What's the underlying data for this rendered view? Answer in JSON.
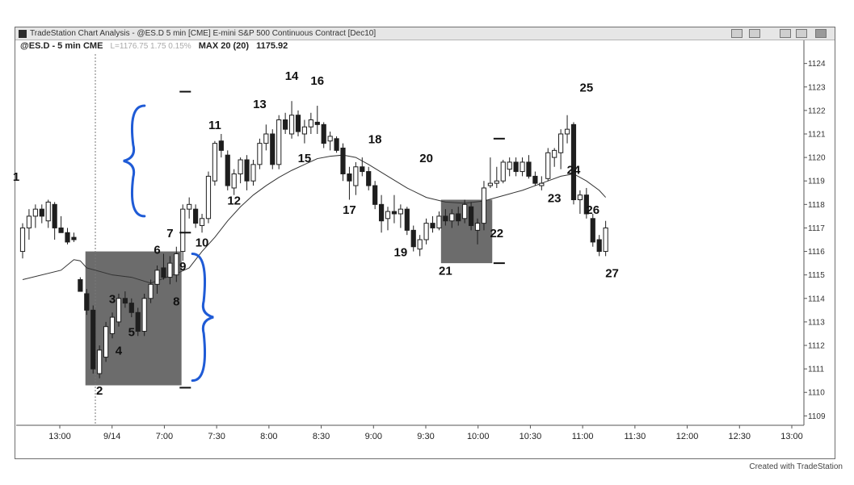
{
  "window": {
    "title": "TradeStation Chart Analysis - @ES.D 5 min [CME] E-mini S&P 500 Continuous Contract [Dec10]",
    "symbol_label": "@ES.D - 5 min CME",
    "last_label": "L=1176.75 1.75 0.15%",
    "ma_label": "MAX 20 (20)",
    "ma_value": "1175.92",
    "footer": "Created with TradeStation"
  },
  "colors": {
    "bull_body": "#ffffff",
    "bear_body": "#1e1e1e",
    "ma_line": "#333333",
    "shaded_box": "#5c5c5c",
    "brace": "#1f5bd6"
  },
  "chart_data": {
    "type": "candlestick",
    "title": "",
    "ylim": [
      1108.6,
      1124.4
    ],
    "y_ticks": [
      1109,
      1110,
      1111,
      1112,
      1113,
      1114,
      1115,
      1116,
      1117,
      1118,
      1119,
      1120,
      1121,
      1122,
      1123,
      1124
    ],
    "x_ticks": [
      "13:00",
      "9/14",
      "7:00",
      "7:30",
      "8:00",
      "8:30",
      "9:00",
      "9:30",
      "10:00",
      "10:30",
      "11:00",
      "11:30",
      "12:00",
      "12:30",
      "13:00"
    ],
    "bars": [
      {
        "o": 1116.0,
        "h": 1117.2,
        "l": 1115.7,
        "c": 1117.0
      },
      {
        "o": 1117.0,
        "h": 1117.8,
        "l": 1116.5,
        "c": 1117.5
      },
      {
        "o": 1117.5,
        "h": 1118.0,
        "l": 1117.0,
        "c": 1117.8
      },
      {
        "o": 1117.8,
        "h": 1118.0,
        "l": 1117.2,
        "c": 1117.5
      },
      {
        "o": 1117.3,
        "h": 1118.2,
        "l": 1117.0,
        "c": 1118.1
      },
      {
        "o": 1118.0,
        "h": 1118.1,
        "l": 1116.5,
        "c": 1117.0
      },
      {
        "o": 1117.0,
        "h": 1117.5,
        "l": 1116.8,
        "c": 1116.8
      },
      {
        "o": 1116.8,
        "h": 1117.0,
        "l": 1116.3,
        "c": 1116.4
      },
      {
        "o": 1116.6,
        "h": 1116.8,
        "l": 1116.4,
        "c": 1116.5
      },
      {
        "o": 1114.8,
        "h": 1114.9,
        "l": 1114.3,
        "c": 1114.3
      },
      {
        "o": 1114.2,
        "h": 1114.4,
        "l": 1113.3,
        "c": 1113.5
      },
      {
        "o": 1113.5,
        "h": 1113.7,
        "l": 1110.8,
        "c": 1111.0
      },
      {
        "o": 1110.8,
        "h": 1112.0,
        "l": 1110.6,
        "c": 1111.8
      },
      {
        "o": 1111.5,
        "h": 1113.0,
        "l": 1111.3,
        "c": 1112.8
      },
      {
        "o": 1112.5,
        "h": 1113.4,
        "l": 1112.3,
        "c": 1113.2
      },
      {
        "o": 1113.0,
        "h": 1114.2,
        "l": 1112.8,
        "c": 1114.0
      },
      {
        "o": 1114.0,
        "h": 1114.3,
        "l": 1113.6,
        "c": 1113.8
      },
      {
        "o": 1113.8,
        "h": 1114.0,
        "l": 1113.2,
        "c": 1113.4
      },
      {
        "o": 1113.4,
        "h": 1113.6,
        "l": 1112.4,
        "c": 1112.6
      },
      {
        "o": 1112.6,
        "h": 1114.2,
        "l": 1112.4,
        "c": 1114.0
      },
      {
        "o": 1114.0,
        "h": 1114.8,
        "l": 1113.8,
        "c": 1114.6
      },
      {
        "o": 1114.6,
        "h": 1115.4,
        "l": 1114.2,
        "c": 1115.2
      },
      {
        "o": 1115.3,
        "h": 1115.9,
        "l": 1114.8,
        "c": 1114.9
      },
      {
        "o": 1114.9,
        "h": 1115.8,
        "l": 1114.6,
        "c": 1115.5
      },
      {
        "o": 1115.0,
        "h": 1116.2,
        "l": 1114.7,
        "c": 1115.9
      },
      {
        "o": 1116.0,
        "h": 1118.0,
        "l": 1115.6,
        "c": 1117.8
      },
      {
        "o": 1117.8,
        "h": 1118.3,
        "l": 1117.4,
        "c": 1118.0
      },
      {
        "o": 1117.8,
        "h": 1118.0,
        "l": 1117.0,
        "c": 1117.2
      },
      {
        "o": 1117.1,
        "h": 1117.6,
        "l": 1116.8,
        "c": 1117.4
      },
      {
        "o": 1117.4,
        "h": 1119.4,
        "l": 1117.2,
        "c": 1119.2
      },
      {
        "o": 1119.0,
        "h": 1120.7,
        "l": 1118.8,
        "c": 1120.6
      },
      {
        "o": 1120.7,
        "h": 1121.0,
        "l": 1120.0,
        "c": 1120.3
      },
      {
        "o": 1120.1,
        "h": 1120.3,
        "l": 1118.6,
        "c": 1118.8
      },
      {
        "o": 1118.7,
        "h": 1119.5,
        "l": 1118.4,
        "c": 1119.3
      },
      {
        "o": 1119.3,
        "h": 1120.0,
        "l": 1118.9,
        "c": 1119.9
      },
      {
        "o": 1119.9,
        "h": 1120.1,
        "l": 1118.6,
        "c": 1119.0
      },
      {
        "o": 1119.0,
        "h": 1119.9,
        "l": 1118.8,
        "c": 1119.7
      },
      {
        "o": 1119.7,
        "h": 1120.8,
        "l": 1119.5,
        "c": 1120.6
      },
      {
        "o": 1120.6,
        "h": 1121.4,
        "l": 1120.3,
        "c": 1121.0
      },
      {
        "o": 1121.0,
        "h": 1121.2,
        "l": 1119.5,
        "c": 1119.7
      },
      {
        "o": 1119.7,
        "h": 1121.8,
        "l": 1119.5,
        "c": 1121.6
      },
      {
        "o": 1121.6,
        "h": 1121.9,
        "l": 1121.0,
        "c": 1121.2
      },
      {
        "o": 1121.0,
        "h": 1122.4,
        "l": 1120.8,
        "c": 1121.8
      },
      {
        "o": 1121.8,
        "h": 1122.0,
        "l": 1120.9,
        "c": 1121.1
      },
      {
        "o": 1121.0,
        "h": 1121.6,
        "l": 1120.6,
        "c": 1121.3
      },
      {
        "o": 1121.3,
        "h": 1121.9,
        "l": 1121.0,
        "c": 1121.6
      },
      {
        "o": 1121.5,
        "h": 1122.2,
        "l": 1121.0,
        "c": 1121.4
      },
      {
        "o": 1121.4,
        "h": 1121.5,
        "l": 1120.4,
        "c": 1120.6
      },
      {
        "o": 1120.7,
        "h": 1121.1,
        "l": 1120.3,
        "c": 1120.9
      },
      {
        "o": 1120.8,
        "h": 1120.9,
        "l": 1120.2,
        "c": 1120.3
      },
      {
        "o": 1120.4,
        "h": 1120.6,
        "l": 1119.0,
        "c": 1119.3
      },
      {
        "o": 1119.3,
        "h": 1119.6,
        "l": 1118.2,
        "c": 1119.0
      },
      {
        "o": 1118.8,
        "h": 1119.8,
        "l": 1118.4,
        "c": 1119.6
      },
      {
        "o": 1119.6,
        "h": 1120.0,
        "l": 1119.2,
        "c": 1119.4
      },
      {
        "o": 1119.4,
        "h": 1119.6,
        "l": 1118.6,
        "c": 1118.8
      },
      {
        "o": 1118.8,
        "h": 1119.0,
        "l": 1117.8,
        "c": 1118.0
      },
      {
        "o": 1118.0,
        "h": 1118.4,
        "l": 1116.8,
        "c": 1117.3
      },
      {
        "o": 1117.4,
        "h": 1117.9,
        "l": 1116.9,
        "c": 1117.7
      },
      {
        "o": 1117.7,
        "h": 1118.4,
        "l": 1117.2,
        "c": 1117.6
      },
      {
        "o": 1117.6,
        "h": 1118.0,
        "l": 1117.0,
        "c": 1117.8
      },
      {
        "o": 1117.8,
        "h": 1117.9,
        "l": 1116.7,
        "c": 1116.9
      },
      {
        "o": 1116.9,
        "h": 1117.1,
        "l": 1116.0,
        "c": 1116.2
      },
      {
        "o": 1116.1,
        "h": 1116.7,
        "l": 1115.8,
        "c": 1116.5
      },
      {
        "o": 1116.5,
        "h": 1117.4,
        "l": 1116.3,
        "c": 1117.2
      },
      {
        "o": 1117.2,
        "h": 1117.5,
        "l": 1116.8,
        "c": 1117.0
      },
      {
        "o": 1117.0,
        "h": 1117.7,
        "l": 1116.9,
        "c": 1117.5
      },
      {
        "o": 1117.5,
        "h": 1117.8,
        "l": 1117.1,
        "c": 1117.3
      },
      {
        "o": 1117.3,
        "h": 1117.8,
        "l": 1117.0,
        "c": 1117.6
      },
      {
        "o": 1117.6,
        "h": 1117.9,
        "l": 1117.1,
        "c": 1117.3
      },
      {
        "o": 1117.4,
        "h": 1118.2,
        "l": 1117.2,
        "c": 1118.0
      },
      {
        "o": 1117.9,
        "h": 1118.1,
        "l": 1116.9,
        "c": 1117.1
      },
      {
        "o": 1116.9,
        "h": 1117.4,
        "l": 1116.3,
        "c": 1117.2
      },
      {
        "o": 1117.2,
        "h": 1119.0,
        "l": 1116.9,
        "c": 1118.7
      },
      {
        "o": 1118.8,
        "h": 1120.0,
        "l": 1118.7,
        "c": 1118.9
      },
      {
        "o": 1118.9,
        "h": 1119.6,
        "l": 1118.7,
        "c": 1119.0
      },
      {
        "o": 1119.0,
        "h": 1119.9,
        "l": 1118.9,
        "c": 1119.8
      },
      {
        "o": 1119.5,
        "h": 1120.0,
        "l": 1119.2,
        "c": 1119.8
      },
      {
        "o": 1119.8,
        "h": 1120.0,
        "l": 1119.2,
        "c": 1119.4
      },
      {
        "o": 1119.4,
        "h": 1120.0,
        "l": 1119.2,
        "c": 1119.8
      },
      {
        "o": 1119.8,
        "h": 1120.1,
        "l": 1119.1,
        "c": 1119.2
      },
      {
        "o": 1119.2,
        "h": 1119.4,
        "l": 1118.8,
        "c": 1118.9
      },
      {
        "o": 1118.8,
        "h": 1119.2,
        "l": 1118.6,
        "c": 1118.9
      },
      {
        "o": 1119.1,
        "h": 1120.4,
        "l": 1119.0,
        "c": 1120.2
      },
      {
        "o": 1120.0,
        "h": 1120.4,
        "l": 1119.6,
        "c": 1120.3
      },
      {
        "o": 1120.2,
        "h": 1121.2,
        "l": 1119.5,
        "c": 1121.0
      },
      {
        "o": 1121.0,
        "h": 1121.8,
        "l": 1120.6,
        "c": 1121.2
      },
      {
        "o": 1121.4,
        "h": 1121.5,
        "l": 1118.0,
        "c": 1118.2
      },
      {
        "o": 1118.2,
        "h": 1118.6,
        "l": 1117.6,
        "c": 1118.4
      },
      {
        "o": 1118.4,
        "h": 1118.7,
        "l": 1117.4,
        "c": 1117.6
      },
      {
        "o": 1117.4,
        "h": 1117.6,
        "l": 1116.2,
        "c": 1116.4
      },
      {
        "o": 1116.5,
        "h": 1116.7,
        "l": 1115.8,
        "c": 1116.0
      },
      {
        "o": 1116.0,
        "h": 1117.3,
        "l": 1115.8,
        "c": 1117.0
      }
    ],
    "moving_average": [
      [
        1114.8,
        0
      ],
      [
        1115.2,
        6
      ],
      [
        1115.65,
        8
      ],
      [
        1115.6,
        9
      ],
      [
        1115.3,
        10
      ],
      [
        1115.0,
        14
      ],
      [
        1114.9,
        17
      ],
      [
        1114.65,
        20
      ],
      [
        1114.85,
        22
      ],
      [
        1115.05,
        24
      ],
      [
        1115.3,
        26
      ],
      [
        1116.0,
        28
      ],
      [
        1116.6,
        30
      ],
      [
        1117.3,
        32
      ],
      [
        1117.9,
        34
      ],
      [
        1118.4,
        36
      ],
      [
        1118.8,
        38
      ],
      [
        1119.15,
        40
      ],
      [
        1119.45,
        42
      ],
      [
        1119.7,
        44
      ],
      [
        1119.95,
        46
      ],
      [
        1120.05,
        48
      ],
      [
        1120.1,
        50
      ],
      [
        1120.0,
        52
      ],
      [
        1119.7,
        54
      ],
      [
        1119.2,
        57
      ],
      [
        1118.7,
        60
      ],
      [
        1118.3,
        63
      ],
      [
        1118.1,
        66
      ],
      [
        1118.05,
        69
      ],
      [
        1118.15,
        72
      ],
      [
        1118.3,
        74
      ],
      [
        1118.45,
        76
      ],
      [
        1118.6,
        78
      ],
      [
        1118.8,
        80
      ],
      [
        1119.0,
        82
      ],
      [
        1119.2,
        84
      ],
      [
        1119.3,
        86
      ],
      [
        1119.0,
        88
      ],
      [
        1118.6,
        90
      ],
      [
        1118.3,
        91
      ]
    ],
    "annotations": [
      {
        "text": "1",
        "bar": -1,
        "price": 1119.0
      },
      {
        "text": "2",
        "bar": 12,
        "price": 1109.9
      },
      {
        "text": "3",
        "bar": 14,
        "price": 1113.8
      },
      {
        "text": "4",
        "bar": 15,
        "price": 1111.6
      },
      {
        "text": "5",
        "bar": 17,
        "price": 1112.4
      },
      {
        "text": "6",
        "bar": 21,
        "price": 1115.9
      },
      {
        "text": "7",
        "bar": 23,
        "price": 1116.6
      },
      {
        "text": "8",
        "bar": 24,
        "price": 1113.7
      },
      {
        "text": "9",
        "bar": 25,
        "price": 1115.2
      },
      {
        "text": "10",
        "bar": 28,
        "price": 1116.2
      },
      {
        "text": "11",
        "bar": 30,
        "price": 1121.2
      },
      {
        "text": "12",
        "bar": 33,
        "price": 1118.0
      },
      {
        "text": "13",
        "bar": 37,
        "price": 1122.1
      },
      {
        "text": "14",
        "bar": 42,
        "price": 1123.3
      },
      {
        "text": "15",
        "bar": 44,
        "price": 1119.8
      },
      {
        "text": "16",
        "bar": 46,
        "price": 1123.1
      },
      {
        "text": "17",
        "bar": 51,
        "price": 1117.6
      },
      {
        "text": "18",
        "bar": 55,
        "price": 1120.6
      },
      {
        "text": "19",
        "bar": 59,
        "price": 1115.8
      },
      {
        "text": "20",
        "bar": 63,
        "price": 1119.8
      },
      {
        "text": "21",
        "bar": 66,
        "price": 1115.0
      },
      {
        "text": "22",
        "bar": 74,
        "price": 1116.6
      },
      {
        "text": "23",
        "bar": 83,
        "price": 1118.1
      },
      {
        "text": "24",
        "bar": 86,
        "price": 1119.3
      },
      {
        "text": "25",
        "bar": 88,
        "price": 1122.8
      },
      {
        "text": "26",
        "bar": 89,
        "price": 1117.6
      },
      {
        "text": "27",
        "bar": 92,
        "price": 1114.9
      }
    ],
    "shaded_regions": [
      {
        "bar_from": 9.8,
        "bar_to": 24.8,
        "price_low": 1110.3,
        "price_high": 1116.0
      },
      {
        "bar_from": 65.3,
        "bar_to": 73.3,
        "price_low": 1115.5,
        "price_high": 1118.2
      }
    ],
    "brace_annotations": [
      {
        "direction": "right",
        "price_high": 1122.2,
        "price_low": 1117.5,
        "bar": 16.5
      },
      {
        "direction": "left",
        "price_high": 1115.9,
        "price_low": 1110.5,
        "bar": 26.5
      }
    ],
    "marker_dashes": [
      {
        "bar": 24.5,
        "price": 1122.8
      },
      {
        "bar": 24.5,
        "price": 1116.8
      },
      {
        "bar": 24.5,
        "price": 1110.2
      },
      {
        "bar": 73.5,
        "price": 1120.8
      },
      {
        "bar": 73.5,
        "price": 1115.5
      }
    ]
  }
}
